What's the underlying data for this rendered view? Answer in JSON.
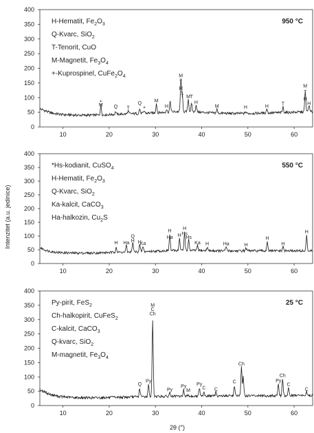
{
  "chart_data": [
    {
      "type": "line",
      "xlim": [
        5,
        64
      ],
      "ylim": [
        0,
        400
      ],
      "x_ticks": [
        10,
        20,
        30,
        40,
        50,
        60
      ],
      "y_ticks": [
        0,
        50,
        100,
        150,
        200,
        250,
        300,
        350,
        400
      ],
      "temperature_label": "950 °C",
      "legend": [
        [
          "H-Hematit, Fe",
          "2",
          "O",
          "3",
          ""
        ],
        [
          "Q-Kvarc, SiO",
          "2",
          ""
        ],
        [
          "T-Tenorit, CuO"
        ],
        [
          "M-Magnetit, Fe",
          "3",
          "O",
          "4",
          ""
        ],
        [
          "+-Kuprospinel, CuFe",
          "2",
          "O",
          "4",
          ""
        ]
      ],
      "baseline": [
        [
          5,
          62
        ],
        [
          6,
          56
        ],
        [
          7,
          50
        ],
        [
          8,
          46
        ],
        [
          10,
          42
        ],
        [
          13,
          40
        ],
        [
          16,
          40
        ],
        [
          20,
          42
        ],
        [
          25,
          45
        ],
        [
          30,
          48
        ],
        [
          34,
          52
        ],
        [
          38,
          52
        ],
        [
          42,
          48
        ],
        [
          46,
          46
        ],
        [
          50,
          46
        ],
        [
          55,
          48
        ],
        [
          60,
          50
        ],
        [
          64,
          52
        ]
      ],
      "peaks": [
        [
          18.2,
          75
        ],
        [
          21.4,
          52
        ],
        [
          24.1,
          55
        ],
        [
          26.6,
          62
        ],
        [
          27.6,
          55
        ],
        [
          30.2,
          80
        ],
        [
          32.4,
          60
        ],
        [
          33.2,
          85
        ],
        [
          35.5,
          160
        ],
        [
          35.8,
          110
        ],
        [
          37.1,
          95
        ],
        [
          37.8,
          78
        ],
        [
          38.8,
          75
        ],
        [
          43.3,
          60
        ],
        [
          49.5,
          52
        ],
        [
          54.1,
          62
        ],
        [
          57.6,
          68
        ],
        [
          62.4,
          120
        ],
        [
          63.2,
          75
        ]
      ],
      "peak_labels": [
        [
          "+",
          18.2,
          83
        ],
        [
          "M",
          18.2,
          70
        ],
        [
          "Q",
          21.4,
          64
        ],
        [
          "T",
          24.1,
          60
        ],
        [
          "Q",
          26.6,
          76
        ],
        [
          "+",
          27.6,
          62
        ],
        [
          "M",
          30.2,
          84
        ],
        [
          "H",
          32.4,
          66
        ],
        [
          "+",
          33.2,
          80
        ],
        [
          "M",
          35.5,
          170
        ],
        [
          "T",
          35.5,
          148
        ],
        [
          "H",
          35.5,
          126
        ],
        [
          "T",
          35.8,
          100
        ],
        [
          "M",
          37.1,
          98
        ],
        [
          "T",
          37.8,
          98
        ],
        [
          "H",
          38.8,
          78
        ],
        [
          "M",
          43.3,
          66
        ],
        [
          "H",
          49.5,
          62
        ],
        [
          "H",
          54.1,
          66
        ],
        [
          "T",
          57.6,
          74
        ],
        [
          "M",
          62.4,
          135
        ],
        [
          "T",
          62.4,
          113
        ],
        [
          "H",
          62.4,
          90
        ],
        [
          "H",
          63.2,
          75
        ]
      ]
    },
    {
      "type": "line",
      "xlim": [
        5,
        64
      ],
      "ylim": [
        0,
        400
      ],
      "x_ticks": [
        10,
        20,
        30,
        40,
        50,
        60
      ],
      "y_ticks": [
        0,
        50,
        100,
        150,
        200,
        250,
        300,
        350,
        400
      ],
      "temperature_label": "550 °C",
      "legend": [
        [
          "*Hs-kodianit, CuSO",
          "4",
          ""
        ],
        [
          "H-Hematit, Fe",
          "2",
          "O",
          "3",
          ""
        ],
        [
          "Q-Kvarc, SiO",
          "2",
          ""
        ],
        [
          "Ka-kalcit, CaCO",
          "3",
          ""
        ],
        [
          "Ha-halkozin, Cu",
          "2",
          "S"
        ]
      ],
      "baseline": [
        [
          5,
          58
        ],
        [
          6,
          50
        ],
        [
          7,
          45
        ],
        [
          9,
          40
        ],
        [
          12,
          38
        ],
        [
          16,
          38
        ],
        [
          20,
          40
        ],
        [
          25,
          42
        ],
        [
          30,
          45
        ],
        [
          35,
          48
        ],
        [
          40,
          47
        ],
        [
          45,
          46
        ],
        [
          50,
          46
        ],
        [
          55,
          46
        ],
        [
          60,
          46
        ],
        [
          64,
          46
        ]
      ],
      "peaks": [
        [
          21.5,
          62
        ],
        [
          23.7,
          65
        ],
        [
          25.1,
          75
        ],
        [
          26.6,
          68
        ],
        [
          27.3,
          62
        ],
        [
          33.1,
          105
        ],
        [
          35.2,
          90
        ],
        [
          36.3,
          115
        ],
        [
          37.2,
          85
        ],
        [
          39.1,
          65
        ],
        [
          41.2,
          60
        ],
        [
          45.3,
          62
        ],
        [
          49.6,
          58
        ],
        [
          54.2,
          82
        ],
        [
          57.6,
          62
        ],
        [
          62.7,
          100
        ]
      ],
      "peak_labels": [
        [
          "H",
          21.5,
          70
        ],
        [
          "Ha",
          23.7,
          70
        ],
        [
          "H",
          25.1,
          78
        ],
        [
          "Q",
          25.1,
          94
        ],
        [
          "H",
          26.6,
          72
        ],
        [
          "Ka",
          27.3,
          68
        ],
        [
          "H",
          33.1,
          114
        ],
        [
          "Ha",
          33.1,
          90
        ],
        [
          "H",
          35.2,
          98
        ],
        [
          "H",
          36.3,
          122
        ],
        [
          "Hs",
          36.3,
          104
        ],
        [
          "Hs",
          37.2,
          90
        ],
        [
          "Ka",
          39.1,
          70
        ],
        [
          "H",
          41.2,
          66
        ],
        [
          "Ha",
          45.3,
          66
        ],
        [
          "H",
          49.6,
          62
        ],
        [
          "H",
          54.2,
          86
        ],
        [
          "H",
          57.6,
          66
        ],
        [
          "H",
          62.7,
          110
        ]
      ]
    },
    {
      "type": "line",
      "xlim": [
        5,
        64
      ],
      "ylim": [
        0,
        400
      ],
      "x_ticks": [
        10,
        20,
        30,
        40,
        50,
        60
      ],
      "y_ticks": [
        0,
        50,
        100,
        150,
        200,
        250,
        300,
        350,
        400
      ],
      "temperature_label": "25 °C",
      "legend": [
        [
          "Py-pirit, FeS",
          "2",
          ""
        ],
        [
          "Ch-halkopirit, CuFeS",
          "2",
          ""
        ],
        [
          "C-kalcit, CaCO",
          "3",
          ""
        ],
        [
          "Q-kvarc, SiO",
          "2",
          ""
        ],
        [
          "M-magnetit, Fe",
          "3",
          "O",
          "4",
          ""
        ]
      ],
      "baseline": [
        [
          5,
          55
        ],
        [
          6,
          48
        ],
        [
          7,
          40
        ],
        [
          9,
          32
        ],
        [
          12,
          28
        ],
        [
          16,
          27
        ],
        [
          20,
          28
        ],
        [
          25,
          30
        ],
        [
          30,
          32
        ],
        [
          35,
          32
        ],
        [
          40,
          33
        ],
        [
          45,
          34
        ],
        [
          50,
          34
        ],
        [
          55,
          34
        ],
        [
          60,
          35
        ],
        [
          64,
          35
        ]
      ],
      "peaks": [
        [
          26.6,
          60
        ],
        [
          28.5,
          72
        ],
        [
          29.4,
          295
        ],
        [
          33.1,
          45
        ],
        [
          36.1,
          55
        ],
        [
          37.1,
          40
        ],
        [
          39.5,
          62
        ],
        [
          40.5,
          50
        ],
        [
          43.1,
          48
        ],
        [
          47.1,
          70
        ],
        [
          48.6,
          135
        ],
        [
          49.0,
          100
        ],
        [
          56.6,
          75
        ],
        [
          57.5,
          95
        ],
        [
          58.8,
          62
        ],
        [
          62.7,
          48
        ]
      ],
      "peak_labels": [
        [
          "Q",
          26.6,
          70
        ],
        [
          "Py",
          28.5,
          80
        ],
        [
          "M",
          29.4,
          345
        ],
        [
          "C",
          29.4,
          330
        ],
        [
          "Ch",
          29.4,
          315
        ],
        [
          "Py",
          33.1,
          50
        ],
        [
          "Py",
          36.1,
          62
        ],
        [
          "M",
          37.1,
          48
        ],
        [
          "Py",
          39.5,
          70
        ],
        [
          "C",
          40.5,
          56
        ],
        [
          "C",
          43.1,
          52
        ],
        [
          "C",
          47.1,
          78
        ],
        [
          "Ch",
          48.6,
          140
        ],
        [
          "Py",
          56.6,
          82
        ],
        [
          "Ch",
          57.5,
          100
        ],
        [
          "C",
          58.8,
          68
        ],
        [
          "C",
          62.7,
          52
        ]
      ]
    }
  ],
  "shared": {
    "ylabel": "Intenzitet (a.u. jedinice)",
    "xlabel": "2θ (°)",
    "line_color": "#1a1a1a"
  }
}
